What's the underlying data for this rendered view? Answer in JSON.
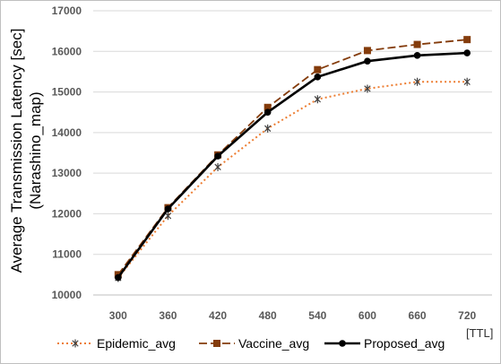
{
  "chart_data": {
    "type": "line",
    "categories": [
      "300",
      "360",
      "420",
      "480",
      "540",
      "600",
      "660",
      "720"
    ],
    "ylabel_line1": "Average Transmission Latency [sec]",
    "ylabel_line2": "(Narashino_map)",
    "xunit": "[TTL]",
    "ylim": [
      10000,
      17000
    ],
    "yticks": [
      10000,
      11000,
      12000,
      13000,
      14000,
      15000,
      16000,
      17000
    ],
    "grid": true,
    "legend_position": "bottom",
    "series": [
      {
        "name": "Epidemic_avg",
        "color": "#ed7d31",
        "style": "dotted",
        "marker": "asterisk",
        "values": [
          10420,
          11950,
          13150,
          14100,
          14820,
          15080,
          15250,
          15250
        ]
      },
      {
        "name": "Vaccine_avg",
        "color": "#843c0c",
        "style": "dashed",
        "marker": "square",
        "values": [
          10500,
          12150,
          13450,
          14620,
          15550,
          16020,
          16170,
          16290
        ]
      },
      {
        "name": "Proposed_avg",
        "color": "#000000",
        "style": "solid",
        "marker": "circle",
        "values": [
          10430,
          12120,
          13420,
          14500,
          15370,
          15760,
          15900,
          15960
        ]
      }
    ]
  }
}
